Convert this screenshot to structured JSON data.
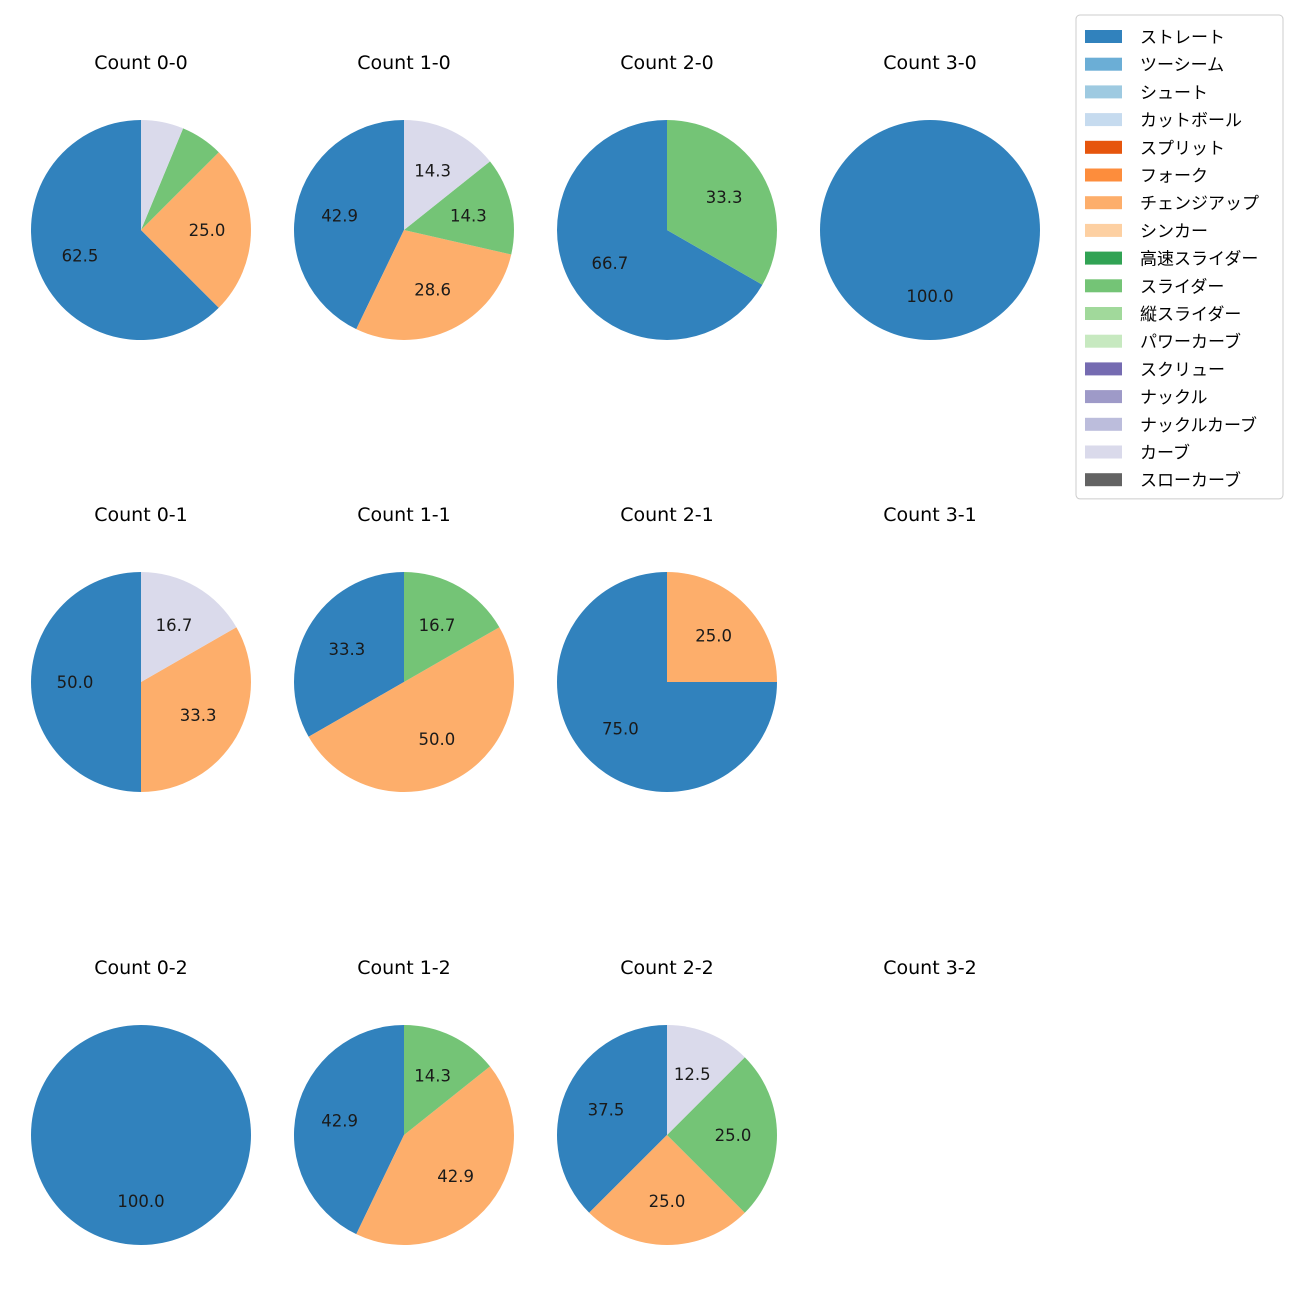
{
  "chart_data": {
    "type": "pie",
    "legend_position": "top-right",
    "legend": [
      {
        "label": "ストレート",
        "color": "#3182bd"
      },
      {
        "label": "ツーシーム",
        "color": "#6baed6"
      },
      {
        "label": "シュート",
        "color": "#9ecae1"
      },
      {
        "label": "カットボール",
        "color": "#c6dbef"
      },
      {
        "label": "スプリット",
        "color": "#e6550d"
      },
      {
        "label": "フォーク",
        "color": "#fd8d3c"
      },
      {
        "label": "チェンジアップ",
        "color": "#fdae6b"
      },
      {
        "label": "シンカー",
        "color": "#fdd0a2"
      },
      {
        "label": "高速スライダー",
        "color": "#31a354"
      },
      {
        "label": "スライダー",
        "color": "#74c476"
      },
      {
        "label": "縦スライダー",
        "color": "#a1d99b"
      },
      {
        "label": "パワーカーブ",
        "color": "#c7e9c0"
      },
      {
        "label": "スクリュー",
        "color": "#756bb1"
      },
      {
        "label": "ナックル",
        "color": "#9e9ac8"
      },
      {
        "label": "ナックルカーブ",
        "color": "#bcbddc"
      },
      {
        "label": "カーブ",
        "color": "#dadaeb"
      },
      {
        "label": "スローカーブ",
        "color": "#636363"
      }
    ],
    "charts": [
      {
        "title": "Count 0-0",
        "slices": [
          {
            "pitch": "ストレート",
            "value": 62.5,
            "label": "62.5"
          },
          {
            "pitch": "チェンジアップ",
            "value": 25.0,
            "label": "25.0"
          },
          {
            "pitch": "スライダー",
            "value": 6.25,
            "label": ""
          },
          {
            "pitch": "カーブ",
            "value": 6.25,
            "label": ""
          }
        ]
      },
      {
        "title": "Count 1-0",
        "slices": [
          {
            "pitch": "ストレート",
            "value": 42.9,
            "label": "42.9"
          },
          {
            "pitch": "チェンジアップ",
            "value": 28.6,
            "label": "28.6"
          },
          {
            "pitch": "スライダー",
            "value": 14.3,
            "label": "14.3"
          },
          {
            "pitch": "カーブ",
            "value": 14.3,
            "label": "14.3"
          }
        ]
      },
      {
        "title": "Count 2-0",
        "slices": [
          {
            "pitch": "ストレート",
            "value": 66.7,
            "label": "66.7"
          },
          {
            "pitch": "スライダー",
            "value": 33.3,
            "label": "33.3"
          }
        ]
      },
      {
        "title": "Count 3-0",
        "slices": [
          {
            "pitch": "ストレート",
            "value": 100.0,
            "label": "100.0"
          }
        ]
      },
      {
        "title": "Count 0-1",
        "slices": [
          {
            "pitch": "ストレート",
            "value": 50.0,
            "label": "50.0"
          },
          {
            "pitch": "チェンジアップ",
            "value": 33.3,
            "label": "33.3"
          },
          {
            "pitch": "カーブ",
            "value": 16.7,
            "label": "16.7"
          }
        ]
      },
      {
        "title": "Count 1-1",
        "slices": [
          {
            "pitch": "ストレート",
            "value": 33.3,
            "label": "33.3"
          },
          {
            "pitch": "チェンジアップ",
            "value": 50.0,
            "label": "50.0"
          },
          {
            "pitch": "スライダー",
            "value": 16.7,
            "label": "16.7"
          }
        ]
      },
      {
        "title": "Count 2-1",
        "slices": [
          {
            "pitch": "ストレート",
            "value": 75.0,
            "label": "75.0"
          },
          {
            "pitch": "チェンジアップ",
            "value": 25.0,
            "label": "25.0"
          }
        ]
      },
      {
        "title": "Count 3-1",
        "slices": []
      },
      {
        "title": "Count 0-2",
        "slices": [
          {
            "pitch": "ストレート",
            "value": 100.0,
            "label": "100.0"
          }
        ]
      },
      {
        "title": "Count 1-2",
        "slices": [
          {
            "pitch": "ストレート",
            "value": 42.9,
            "label": "42.9"
          },
          {
            "pitch": "チェンジアップ",
            "value": 42.9,
            "label": "42.9"
          },
          {
            "pitch": "スライダー",
            "value": 14.3,
            "label": "14.3"
          }
        ]
      },
      {
        "title": "Count 2-2",
        "slices": [
          {
            "pitch": "ストレート",
            "value": 37.5,
            "label": "37.5"
          },
          {
            "pitch": "チェンジアップ",
            "value": 25.0,
            "label": "25.0"
          },
          {
            "pitch": "スライダー",
            "value": 25.0,
            "label": "25.0"
          },
          {
            "pitch": "カーブ",
            "value": 12.5,
            "label": "12.5"
          }
        ]
      },
      {
        "title": "Count 3-2",
        "slices": []
      }
    ]
  }
}
